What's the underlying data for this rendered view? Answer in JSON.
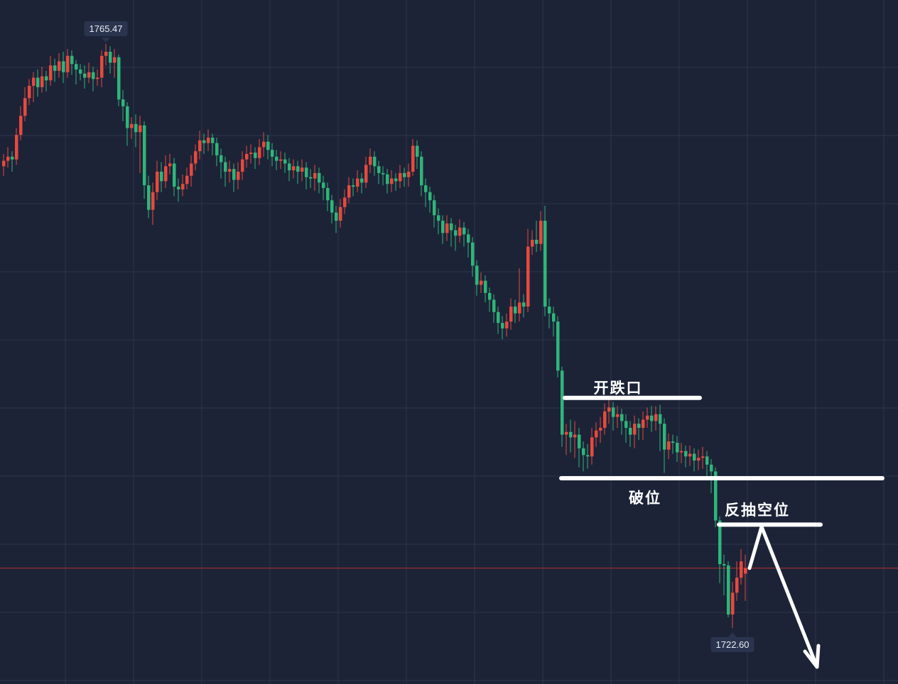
{
  "chart_data": {
    "type": "candlestick",
    "title": "",
    "xlabel": "",
    "ylabel": "",
    "grid": true,
    "up_color": "#e8493f",
    "down_color": "#2fb57a",
    "background": "#1c2337",
    "ylim": [
      1718.5,
      1768.7
    ],
    "max_label": "1765.47",
    "min_label": "1722.60",
    "current_price": 1727.0,
    "current_price_line_color": "#b8322b",
    "candles": [
      [
        1756.5,
        1757.4,
        1755.8,
        1756.9
      ],
      [
        1756.9,
        1757.9,
        1756.4,
        1757.2
      ],
      [
        1757.2,
        1757.6,
        1756.1,
        1757.0
      ],
      [
        1757.0,
        1759.3,
        1756.6,
        1758.8
      ],
      [
        1758.8,
        1760.9,
        1758.4,
        1760.2
      ],
      [
        1760.2,
        1762.3,
        1759.8,
        1761.5
      ],
      [
        1761.5,
        1762.9,
        1761.0,
        1762.4
      ],
      [
        1762.4,
        1763.4,
        1761.2,
        1763.0
      ],
      [
        1763.0,
        1763.6,
        1761.6,
        1762.3
      ],
      [
        1762.3,
        1763.8,
        1761.9,
        1763.1
      ],
      [
        1763.1,
        1763.5,
        1762.0,
        1762.8
      ],
      [
        1762.8,
        1764.6,
        1762.4,
        1763.9
      ],
      [
        1763.9,
        1764.4,
        1762.7,
        1763.5
      ],
      [
        1763.5,
        1764.8,
        1763.0,
        1764.2
      ],
      [
        1764.2,
        1764.9,
        1762.6,
        1763.4
      ],
      [
        1763.4,
        1765.1,
        1763.0,
        1764.6
      ],
      [
        1764.6,
        1765.0,
        1763.2,
        1764.0
      ],
      [
        1764.0,
        1764.3,
        1762.5,
        1763.6
      ],
      [
        1763.6,
        1764.0,
        1762.8,
        1763.3
      ],
      [
        1763.3,
        1763.9,
        1762.2,
        1763.0
      ],
      [
        1763.0,
        1764.1,
        1762.6,
        1763.4
      ],
      [
        1763.4,
        1763.8,
        1762.0,
        1762.9
      ],
      [
        1762.9,
        1763.6,
        1762.4,
        1763.0
      ],
      [
        1763.0,
        1765.0,
        1762.3,
        1764.6
      ],
      [
        1764.6,
        1765.47,
        1763.9,
        1764.9
      ],
      [
        1764.9,
        1765.3,
        1763.3,
        1764.1
      ],
      [
        1764.1,
        1765.1,
        1763.0,
        1764.5
      ],
      [
        1764.5,
        1764.7,
        1760.9,
        1761.4
      ],
      [
        1761.4,
        1762.1,
        1759.8,
        1760.9
      ],
      [
        1760.9,
        1761.2,
        1758.0,
        1759.3
      ],
      [
        1759.3,
        1760.1,
        1758.5,
        1759.6
      ],
      [
        1759.6,
        1760.3,
        1757.9,
        1759.0
      ],
      [
        1759.0,
        1760.2,
        1756.0,
        1759.5
      ],
      [
        1759.5,
        1759.8,
        1754.1,
        1755.1
      ],
      [
        1755.1,
        1755.8,
        1752.7,
        1753.3
      ],
      [
        1753.3,
        1755.3,
        1752.2,
        1754.6
      ],
      [
        1754.6,
        1756.9,
        1754.0,
        1756.1
      ],
      [
        1756.1,
        1756.8,
        1754.6,
        1755.4
      ],
      [
        1755.4,
        1757.3,
        1754.9,
        1756.5
      ],
      [
        1756.5,
        1757.4,
        1755.9,
        1756.7
      ],
      [
        1756.7,
        1757.1,
        1754.3,
        1755.0
      ],
      [
        1755.0,
        1755.6,
        1753.9,
        1754.8
      ],
      [
        1754.8,
        1755.9,
        1754.3,
        1755.2
      ],
      [
        1755.2,
        1756.4,
        1754.8,
        1755.8
      ],
      [
        1755.8,
        1757.3,
        1755.0,
        1756.7
      ],
      [
        1756.7,
        1758.1,
        1756.2,
        1757.6
      ],
      [
        1757.6,
        1759.1,
        1757.0,
        1758.4
      ],
      [
        1758.4,
        1758.9,
        1757.4,
        1758.2
      ],
      [
        1758.2,
        1759.2,
        1757.6,
        1758.6
      ],
      [
        1758.6,
        1758.9,
        1757.3,
        1758.2
      ],
      [
        1758.2,
        1758.6,
        1756.5,
        1757.3
      ],
      [
        1757.3,
        1757.8,
        1755.6,
        1756.8
      ],
      [
        1756.8,
        1757.2,
        1755.0,
        1756.1
      ],
      [
        1756.1,
        1756.9,
        1755.3,
        1756.3
      ],
      [
        1756.3,
        1756.7,
        1754.6,
        1755.5
      ],
      [
        1755.5,
        1756.8,
        1754.8,
        1756.1
      ],
      [
        1756.1,
        1757.6,
        1755.5,
        1757.0
      ],
      [
        1757.0,
        1758.0,
        1756.4,
        1757.4
      ],
      [
        1757.4,
        1758.1,
        1756.7,
        1757.5
      ],
      [
        1757.5,
        1757.9,
        1756.3,
        1757.1
      ],
      [
        1757.1,
        1758.5,
        1756.6,
        1757.9
      ],
      [
        1757.9,
        1759.0,
        1757.2,
        1758.3
      ],
      [
        1758.3,
        1758.8,
        1757.0,
        1757.7
      ],
      [
        1757.7,
        1758.2,
        1756.5,
        1757.2
      ],
      [
        1757.2,
        1757.7,
        1756.2,
        1756.9
      ],
      [
        1756.9,
        1757.6,
        1756.3,
        1757.0
      ],
      [
        1757.0,
        1757.5,
        1756.0,
        1756.7
      ],
      [
        1756.7,
        1757.1,
        1755.4,
        1756.2
      ],
      [
        1756.2,
        1757.0,
        1755.6,
        1756.5
      ],
      [
        1756.5,
        1756.9,
        1755.2,
        1756.1
      ],
      [
        1756.1,
        1757.0,
        1755.4,
        1756.4
      ],
      [
        1756.4,
        1756.8,
        1754.8,
        1755.7
      ],
      [
        1755.7,
        1756.3,
        1754.9,
        1755.6
      ],
      [
        1755.6,
        1756.6,
        1754.7,
        1756.0
      ],
      [
        1756.0,
        1756.4,
        1754.5,
        1755.3
      ],
      [
        1755.3,
        1755.8,
        1754.0,
        1754.9
      ],
      [
        1754.9,
        1755.3,
        1753.2,
        1754.0
      ],
      [
        1754.0,
        1754.4,
        1752.3,
        1753.1
      ],
      [
        1753.1,
        1753.6,
        1751.6,
        1752.5
      ],
      [
        1752.5,
        1754.1,
        1752.0,
        1753.5
      ],
      [
        1753.5,
        1754.8,
        1753.0,
        1754.2
      ],
      [
        1754.2,
        1755.7,
        1753.8,
        1755.1
      ],
      [
        1755.1,
        1755.6,
        1754.3,
        1755.0
      ],
      [
        1755.0,
        1756.2,
        1754.6,
        1755.6
      ],
      [
        1755.6,
        1756.0,
        1754.5,
        1755.3
      ],
      [
        1755.3,
        1757.2,
        1754.9,
        1756.6
      ],
      [
        1756.6,
        1757.8,
        1756.0,
        1757.2
      ],
      [
        1757.2,
        1757.6,
        1755.8,
        1756.5
      ],
      [
        1756.5,
        1756.9,
        1755.2,
        1756.0
      ],
      [
        1756.0,
        1756.5,
        1755.1,
        1755.9
      ],
      [
        1755.9,
        1756.3,
        1754.5,
        1755.2
      ],
      [
        1755.2,
        1756.2,
        1754.6,
        1755.6
      ],
      [
        1755.6,
        1756.0,
        1754.7,
        1755.4
      ],
      [
        1755.4,
        1756.6,
        1754.9,
        1756.0
      ],
      [
        1756.0,
        1756.4,
        1755.0,
        1755.7
      ],
      [
        1755.7,
        1756.7,
        1755.0,
        1756.1
      ],
      [
        1756.1,
        1758.5,
        1755.8,
        1758.0
      ],
      [
        1758.0,
        1758.4,
        1756.3,
        1757.2
      ],
      [
        1757.2,
        1757.6,
        1754.3,
        1755.1
      ],
      [
        1755.1,
        1755.6,
        1753.5,
        1754.6
      ],
      [
        1754.6,
        1755.0,
        1753.1,
        1754.0
      ],
      [
        1754.0,
        1754.4,
        1752.0,
        1752.9
      ],
      [
        1752.9,
        1753.4,
        1751.5,
        1752.5
      ],
      [
        1752.5,
        1752.9,
        1750.8,
        1751.6
      ],
      [
        1751.6,
        1752.9,
        1751.0,
        1752.3
      ],
      [
        1752.3,
        1752.7,
        1750.6,
        1751.8
      ],
      [
        1751.8,
        1752.2,
        1750.3,
        1751.4
      ],
      [
        1751.4,
        1752.6,
        1750.9,
        1752.0
      ],
      [
        1752.0,
        1752.4,
        1750.6,
        1751.5
      ],
      [
        1751.5,
        1751.9,
        1749.8,
        1750.9
      ],
      [
        1750.9,
        1751.3,
        1748.4,
        1749.2
      ],
      [
        1749.2,
        1749.6,
        1747.0,
        1747.8
      ],
      [
        1747.8,
        1748.7,
        1747.2,
        1748.1
      ],
      [
        1748.1,
        1748.5,
        1746.5,
        1747.2
      ],
      [
        1747.2,
        1747.6,
        1745.8,
        1746.7
      ],
      [
        1746.7,
        1747.1,
        1745.0,
        1745.8
      ],
      [
        1745.8,
        1746.2,
        1744.2,
        1745.0
      ],
      [
        1745.0,
        1745.5,
        1743.8,
        1744.6
      ],
      [
        1744.6,
        1745.7,
        1744.0,
        1745.1
      ],
      [
        1745.1,
        1746.8,
        1744.5,
        1746.2
      ],
      [
        1746.2,
        1746.7,
        1745.0,
        1745.7
      ],
      [
        1745.7,
        1749.0,
        1745.1,
        1746.5
      ],
      [
        1746.5,
        1747.1,
        1745.4,
        1746.2
      ],
      [
        1746.2,
        1751.9,
        1745.8,
        1750.6
      ],
      [
        1750.6,
        1751.8,
        1750.0,
        1751.1
      ],
      [
        1751.1,
        1752.5,
        1750.2,
        1750.8
      ],
      [
        1750.8,
        1753.2,
        1750.3,
        1752.5
      ],
      [
        1752.5,
        1753.6,
        1745.5,
        1746.2
      ],
      [
        1746.2,
        1746.8,
        1744.6,
        1745.7
      ],
      [
        1745.7,
        1746.2,
        1744.0,
        1745.1
      ],
      [
        1745.1,
        1745.5,
        1741.0,
        1741.5
      ],
      [
        1741.5,
        1741.8,
        1735.9,
        1736.8
      ],
      [
        1736.8,
        1737.6,
        1735.3,
        1737.0
      ],
      [
        1737.0,
        1737.9,
        1735.5,
        1736.6
      ],
      [
        1736.6,
        1737.8,
        1735.1,
        1736.8
      ],
      [
        1736.8,
        1737.3,
        1734.4,
        1735.8
      ],
      [
        1735.8,
        1736.3,
        1734.1,
        1735.3
      ],
      [
        1735.3,
        1736.1,
        1734.3,
        1735.2
      ],
      [
        1735.2,
        1737.3,
        1734.6,
        1736.6
      ],
      [
        1736.6,
        1737.7,
        1735.9,
        1737.1
      ],
      [
        1737.1,
        1738.1,
        1736.2,
        1737.3
      ],
      [
        1737.3,
        1739.1,
        1736.8,
        1738.5
      ],
      [
        1738.5,
        1739.4,
        1737.6,
        1738.8
      ],
      [
        1738.8,
        1739.2,
        1737.1,
        1738.1
      ],
      [
        1738.1,
        1738.9,
        1737.3,
        1738.3
      ],
      [
        1738.3,
        1738.7,
        1736.8,
        1737.8
      ],
      [
        1737.8,
        1738.3,
        1736.2,
        1737.3
      ],
      [
        1737.3,
        1737.8,
        1735.9,
        1736.8
      ],
      [
        1736.8,
        1738.2,
        1735.8,
        1737.6
      ],
      [
        1737.6,
        1738.0,
        1736.4,
        1737.3
      ],
      [
        1737.3,
        1738.5,
        1736.4,
        1737.9
      ],
      [
        1737.9,
        1738.8,
        1737.3,
        1738.2
      ],
      [
        1738.2,
        1738.9,
        1737.0,
        1737.8
      ],
      [
        1737.8,
        1738.9,
        1737.1,
        1738.3
      ],
      [
        1738.3,
        1739.0,
        1735.6,
        1737.6
      ],
      [
        1737.6,
        1738.0,
        1734.0,
        1735.7
      ],
      [
        1735.7,
        1736.9,
        1735.0,
        1736.3
      ],
      [
        1736.3,
        1736.8,
        1735.4,
        1736.2
      ],
      [
        1736.2,
        1736.7,
        1734.8,
        1735.5
      ],
      [
        1735.5,
        1736.2,
        1734.7,
        1735.6
      ],
      [
        1735.6,
        1736.0,
        1734.4,
        1735.2
      ],
      [
        1735.2,
        1736.0,
        1734.5,
        1735.4
      ],
      [
        1735.4,
        1735.8,
        1734.1,
        1734.9
      ],
      [
        1734.9,
        1735.7,
        1734.2,
        1735.1
      ],
      [
        1735.1,
        1735.9,
        1734.3,
        1735.2
      ],
      [
        1735.2,
        1735.6,
        1733.7,
        1734.6
      ],
      [
        1734.6,
        1735.0,
        1732.5,
        1734.1
      ],
      [
        1734.1,
        1734.4,
        1730.0,
        1730.5
      ],
      [
        1730.5,
        1730.8,
        1725.9,
        1727.3
      ],
      [
        1727.3,
        1728.0,
        1725.0,
        1727.2
      ],
      [
        1727.2,
        1727.5,
        1723.4,
        1723.6
      ],
      [
        1723.6,
        1726.0,
        1722.6,
        1725.2
      ],
      [
        1725.2,
        1727.5,
        1724.6,
        1726.3
      ],
      [
        1726.3,
        1728.4,
        1725.8,
        1727.5
      ],
      [
        1726.6,
        1728.0,
        1724.6,
        1727.0
      ]
    ],
    "annotations": [
      {
        "text": "开跌口",
        "level": 1739.5
      },
      {
        "text": "破位",
        "level": 1733.6
      },
      {
        "text": "反抽空位",
        "level": 1730.2
      }
    ],
    "annotation_color": "#ffffff"
  }
}
